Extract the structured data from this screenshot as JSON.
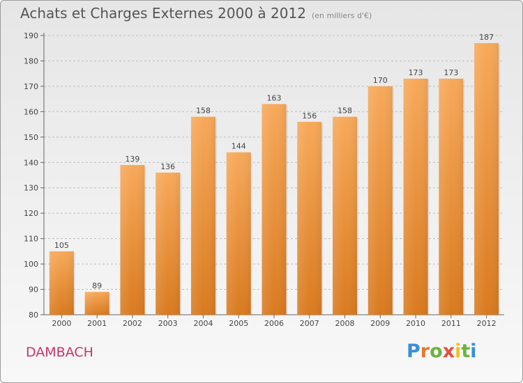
{
  "header": {
    "title": "Achats et Charges Externes 2000 à 2012",
    "subtitle": "(en milliers d'€)"
  },
  "commune": "DAMBACH",
  "logo": {
    "letters": [
      "P",
      "r",
      "o",
      "x",
      "i",
      "t",
      "i"
    ],
    "colors": [
      "#3a8fd6",
      "#e8772e",
      "#6cb33f",
      "#e64d3b",
      "#f2c01e",
      "#6cb33f",
      "#3a8fd6"
    ]
  },
  "colors": {
    "bar_top": "#f7a95a",
    "bar_bottom": "#d97a1f",
    "axis": "#666666",
    "grid": "#bdbdbd"
  },
  "chart_data": {
    "type": "bar",
    "categories": [
      "2000",
      "2001",
      "2002",
      "2003",
      "2004",
      "2005",
      "2006",
      "2007",
      "2008",
      "2009",
      "2010",
      "2011",
      "2012"
    ],
    "values": [
      105,
      89,
      139,
      136,
      158,
      144,
      163,
      156,
      158,
      170,
      173,
      173,
      187
    ],
    "title": "Achats et Charges Externes 2000 à 2012",
    "ylim": [
      80,
      190
    ],
    "yticks": [
      80,
      90,
      100,
      110,
      120,
      130,
      140,
      150,
      160,
      170,
      180,
      190
    ],
    "grid": "y-dashed",
    "data_labels": true
  }
}
